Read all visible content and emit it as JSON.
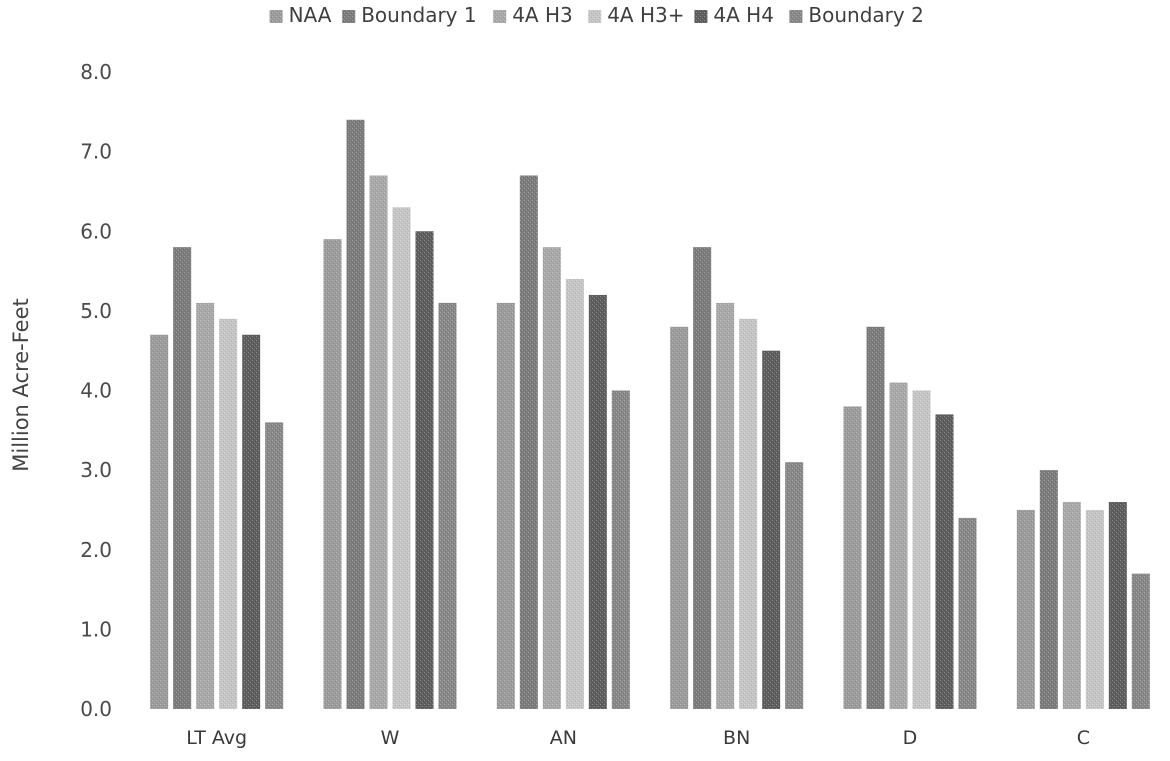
{
  "chart_data": {
    "type": "bar",
    "title": "",
    "xlabel": "",
    "ylabel": "Million Acre-Feet",
    "ylim": [
      0,
      8
    ],
    "yticks": [
      "0.0",
      "1.0",
      "2.0",
      "3.0",
      "4.0",
      "5.0",
      "6.0",
      "7.0",
      "8.0"
    ],
    "grid": false,
    "legend_position": "top",
    "categories": [
      "LT Avg",
      "W",
      "AN",
      "BN",
      "D",
      "C"
    ],
    "series": [
      {
        "name": "NAA",
        "color": "#9c9c9c",
        "values": [
          4.7,
          5.9,
          5.1,
          4.8,
          3.8,
          2.5
        ]
      },
      {
        "name": "Boundary 1",
        "color": "#7c7c7c",
        "values": [
          5.8,
          7.4,
          6.7,
          5.8,
          4.8,
          3.0
        ]
      },
      {
        "name": "4A H3",
        "color": "#a9a9a9",
        "values": [
          5.1,
          6.7,
          5.8,
          5.1,
          4.1,
          2.6
        ]
      },
      {
        "name": "4A H3+",
        "color": "#c6c6c6",
        "values": [
          4.9,
          6.3,
          5.4,
          4.9,
          4.0,
          2.5
        ]
      },
      {
        "name": "4A H4",
        "color": "#5f5f5f",
        "values": [
          4.7,
          6.0,
          5.2,
          4.5,
          3.7,
          2.6
        ]
      },
      {
        "name": "Boundary 2",
        "color": "#888888",
        "values": [
          3.6,
          5.1,
          4.0,
          3.1,
          2.4,
          1.7
        ]
      }
    ]
  }
}
